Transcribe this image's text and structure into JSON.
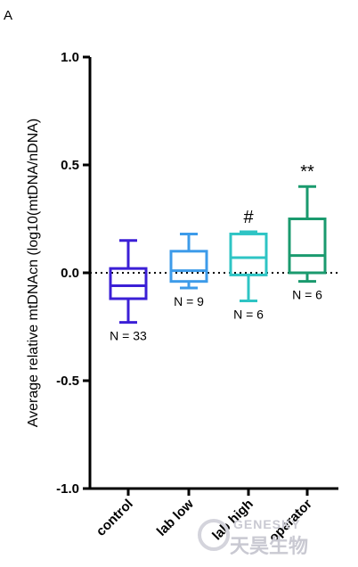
{
  "panel_label": "A",
  "watermark": {
    "en": "GENESKY",
    "cn": "天昊生物"
  },
  "chart_data": {
    "type": "box",
    "title": "",
    "xlabel": "",
    "ylabel": "Average relative mtDNAcn (log10(mtDNA/nDNA)",
    "ylim": [
      -1.0,
      1.0
    ],
    "yticks": [
      {
        "value": 1.0,
        "label": "1.0"
      },
      {
        "value": 0.5,
        "label": "0.5"
      },
      {
        "value": 0.0,
        "label": "0.0"
      },
      {
        "value": -0.5,
        "label": "-0.5"
      },
      {
        "value": -1.0,
        "label": "-1.0"
      }
    ],
    "reference_line": 0.0,
    "categories": [
      "control",
      "lab low",
      "lab high",
      "operator"
    ],
    "groups": [
      {
        "category": "control",
        "color": "#3b1fd6",
        "min": -0.23,
        "q1": -0.12,
        "median": -0.06,
        "q3": 0.02,
        "max": 0.15,
        "n_label": "N = 33",
        "significance": ""
      },
      {
        "category": "lab low",
        "color": "#3d9be9",
        "min": -0.07,
        "q1": -0.04,
        "median": 0.01,
        "q3": 0.1,
        "max": 0.18,
        "n_label": "N = 9",
        "significance": ""
      },
      {
        "category": "lab high",
        "color": "#2ec4c4",
        "min": -0.13,
        "q1": -0.01,
        "median": 0.07,
        "q3": 0.18,
        "max": 0.19,
        "n_label": "N = 6",
        "significance": "#"
      },
      {
        "category": "operator",
        "color": "#1a9a6e",
        "min": -0.04,
        "q1": 0.0,
        "median": 0.08,
        "q3": 0.25,
        "max": 0.4,
        "n_label": "N = 6",
        "significance": "**"
      }
    ]
  }
}
